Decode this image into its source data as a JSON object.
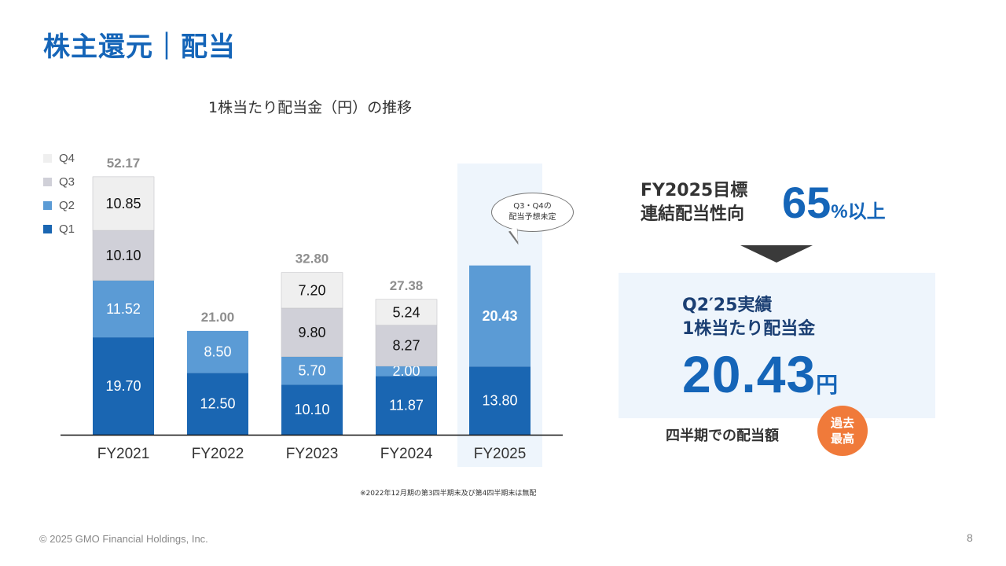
{
  "header": {
    "title": "株主還元｜配当"
  },
  "chart_data": {
    "type": "bar",
    "stacked": true,
    "title": "1株当たり配当金（円）の推移",
    "categories": [
      "FY2021",
      "FY2022",
      "FY2023",
      "FY2024",
      "FY2025"
    ],
    "series": [
      {
        "name": "Q1",
        "color": "#1a66b2",
        "values": [
          19.7,
          12.5,
          10.1,
          11.87,
          13.8
        ],
        "labels": [
          "19.70",
          "12.50",
          "10.10",
          "11.87",
          "13.80"
        ]
      },
      {
        "name": "Q2",
        "color": "#5b9bd5",
        "values": [
          11.52,
          8.5,
          5.7,
          2.0,
          20.43
        ],
        "labels": [
          "11.52",
          "8.50",
          "5.70",
          "2.00",
          "20.43"
        ]
      },
      {
        "name": "Q3",
        "color": "#d0d0d8",
        "values": [
          10.1,
          0,
          9.8,
          8.27,
          0
        ],
        "labels": [
          "10.10",
          "",
          "9.80",
          "8.27",
          ""
        ]
      },
      {
        "name": "Q4",
        "color": "#efefef",
        "values": [
          10.85,
          0,
          7.2,
          5.24,
          0
        ],
        "labels": [
          "10.85",
          "",
          "7.20",
          "5.24",
          ""
        ]
      }
    ],
    "totals": [
      "52.17",
      "21.00",
      "32.80",
      "27.38",
      ""
    ],
    "highlight_category": "FY2025",
    "legend_position": "left"
  },
  "callout": {
    "line1": "Q3・Q4の",
    "line2": "配当予想未定"
  },
  "target": {
    "line1": "FY2025目標",
    "line2": "連結配当性向",
    "value": "65",
    "suffix": "%以上"
  },
  "result": {
    "line1": "Q2′25実績",
    "line2": "1株当たり配当金",
    "value": "20.43",
    "unit": "円"
  },
  "quarterly": {
    "label": "四半期での配当額"
  },
  "badge": {
    "line1": "過去",
    "line2": "最高"
  },
  "footnote": "※2022年12月期の第3四半期末及び第4四半期末は無配",
  "footer": {
    "copyright": "© 2025 GMO Financial Holdings, Inc.",
    "page": "8"
  }
}
